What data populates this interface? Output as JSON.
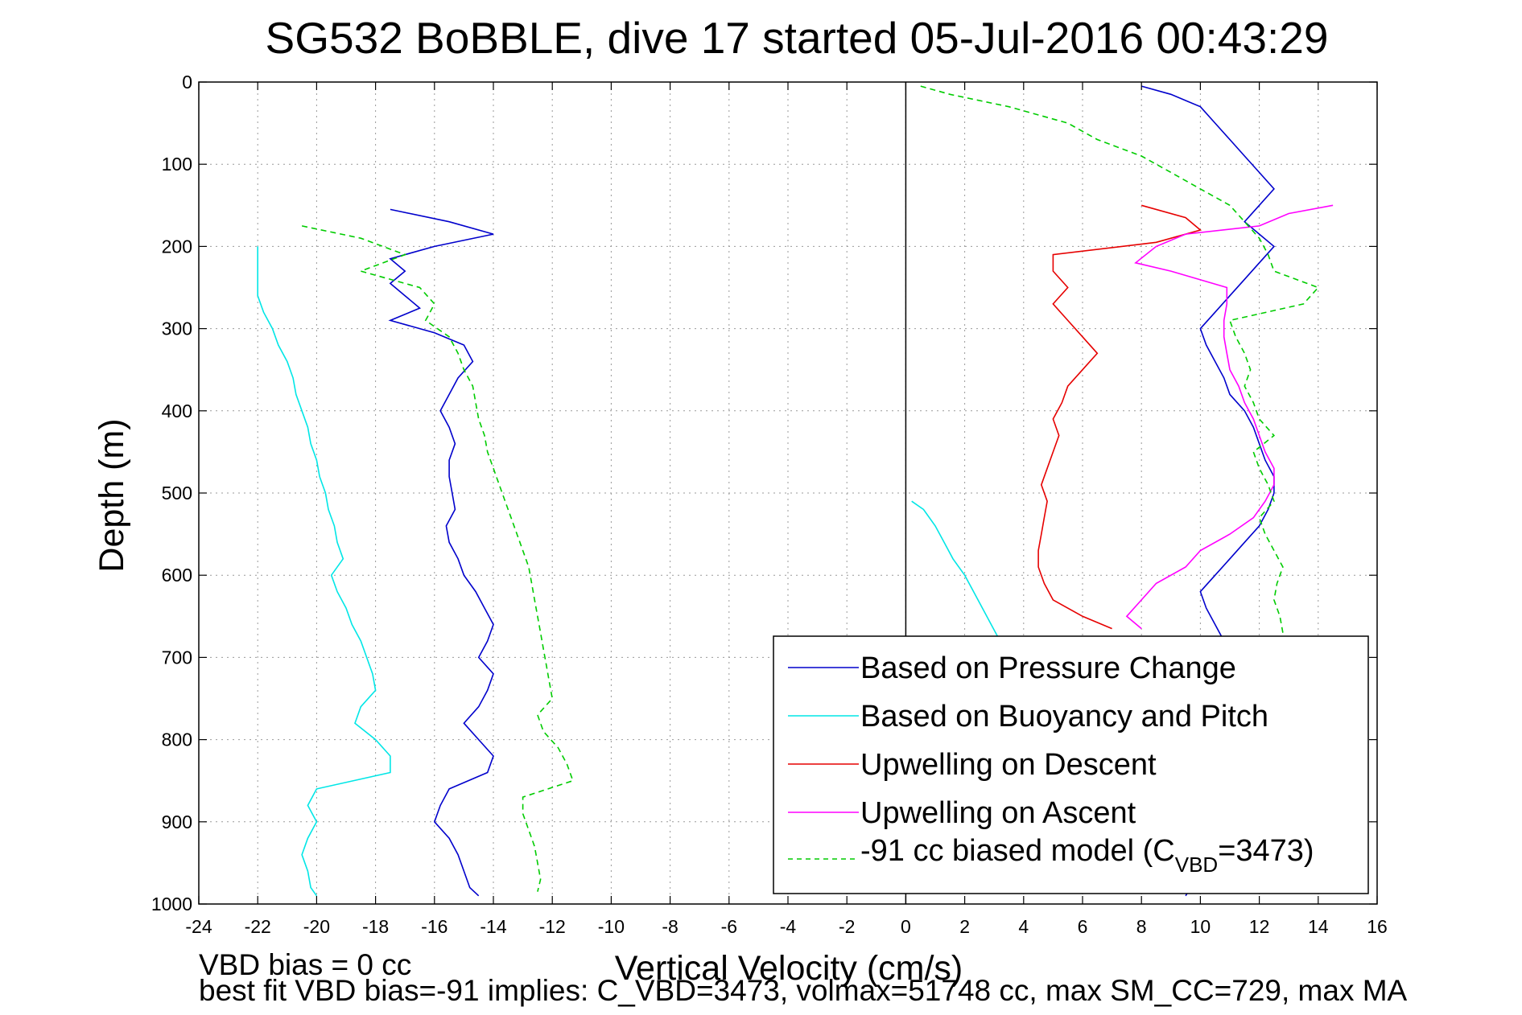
{
  "chart_data": {
    "type": "line",
    "title": "SG532 BoBBLE, dive 17 started 05-Jul-2016 00:43:29",
    "xlabel": "Vertical Velocity (cm/s)",
    "ylabel": "Depth (m)",
    "xlim": [
      -24,
      16
    ],
    "ylim": [
      1000,
      0
    ],
    "y_inverted": true,
    "grid": true,
    "legend_position": "bottom-right",
    "x_ticks": [
      "-24",
      "-22",
      "-20",
      "-18",
      "-16",
      "-14",
      "-12",
      "-10",
      "-8",
      "-6",
      "-4",
      "-2",
      "0",
      "2",
      "4",
      "6",
      "8",
      "10",
      "12",
      "14",
      "16"
    ],
    "y_ticks": [
      "0",
      "100",
      "200",
      "300",
      "400",
      "500",
      "600",
      "700",
      "800",
      "900",
      "1000"
    ],
    "legend": {
      "pressure": "Based on Pressure Change",
      "buoyancy": "Based on Buoyancy and Pitch",
      "descent": "Upwelling on Descent",
      "ascent": "Upwelling on Ascent",
      "model_main": "-91 cc biased model (C",
      "model_sub": "VBD",
      "model_tail": "=3473)"
    },
    "colors": {
      "pressure": "#0000cc",
      "buoyancy": "#00e6e6",
      "descent": "#e60000",
      "ascent": "#ff00ff",
      "model": "#00cc00"
    },
    "series": [
      {
        "key": "pressure_descent",
        "color": "#0000cc",
        "depth": [
          155,
          170,
          185,
          200,
          215,
          230,
          245,
          260,
          275,
          290,
          305,
          320,
          340,
          360,
          380,
          400,
          420,
          440,
          460,
          480,
          500,
          520,
          540,
          560,
          580,
          600,
          620,
          640,
          660,
          680,
          700,
          720,
          740,
          760,
          780,
          800,
          820,
          840,
          860,
          880,
          900,
          920,
          940,
          960,
          980,
          990
        ],
        "velocity": [
          -17.5,
          -15.5,
          -14.0,
          -16.0,
          -17.5,
          -17.0,
          -17.5,
          -17.0,
          -16.5,
          -17.5,
          -16.0,
          -15.0,
          -14.7,
          -15.2,
          -15.5,
          -15.8,
          -15.5,
          -15.3,
          -15.5,
          -15.5,
          -15.4,
          -15.3,
          -15.6,
          -15.5,
          -15.2,
          -15.0,
          -14.6,
          -14.3,
          -14.0,
          -14.2,
          -14.5,
          -14.0,
          -14.2,
          -14.5,
          -15.0,
          -14.5,
          -14.0,
          -14.2,
          -15.5,
          -15.8,
          -16.0,
          -15.5,
          -15.2,
          -15.0,
          -14.8,
          -14.5
        ]
      },
      {
        "key": "buoyancy_descent",
        "color": "#00e6e6",
        "depth": [
          200,
          220,
          240,
          260,
          280,
          300,
          320,
          340,
          360,
          380,
          400,
          420,
          440,
          460,
          480,
          500,
          520,
          540,
          560,
          580,
          600,
          620,
          640,
          660,
          680,
          700,
          720,
          740,
          760,
          780,
          800,
          820,
          840,
          860,
          880,
          900,
          920,
          940,
          960,
          980,
          990
        ],
        "velocity": [
          -22.0,
          -22.0,
          -22.0,
          -22.0,
          -21.8,
          -21.5,
          -21.3,
          -21.0,
          -20.8,
          -20.7,
          -20.5,
          -20.3,
          -20.2,
          -20.0,
          -19.9,
          -19.7,
          -19.6,
          -19.4,
          -19.3,
          -19.1,
          -19.5,
          -19.3,
          -19.0,
          -18.8,
          -18.5,
          -18.3,
          -18.1,
          -18.0,
          -18.5,
          -18.7,
          -18.0,
          -17.5,
          -17.5,
          -20.0,
          -20.3,
          -20.0,
          -20.3,
          -20.5,
          -20.3,
          -20.2,
          -20.0
        ]
      },
      {
        "key": "model_descent",
        "color": "#00cc00",
        "depth": [
          175,
          190,
          210,
          230,
          250,
          270,
          290,
          310,
          330,
          350,
          370,
          390,
          410,
          430,
          450,
          470,
          490,
          510,
          530,
          550,
          570,
          590,
          610,
          630,
          650,
          670,
          690,
          710,
          730,
          750,
          770,
          790,
          810,
          830,
          850,
          870,
          890,
          910,
          930,
          950,
          970,
          985
        ],
        "velocity": [
          -20.5,
          -18.5,
          -17.0,
          -18.5,
          -16.5,
          -16.0,
          -16.3,
          -15.5,
          -15.2,
          -15.0,
          -14.7,
          -14.6,
          -14.5,
          -14.3,
          -14.2,
          -14.0,
          -13.8,
          -13.6,
          -13.4,
          -13.2,
          -13.0,
          -12.8,
          -12.7,
          -12.6,
          -12.5,
          -12.4,
          -12.3,
          -12.2,
          -12.1,
          -12.0,
          -12.5,
          -12.3,
          -11.8,
          -11.5,
          -11.3,
          -13.0,
          -13.0,
          -12.8,
          -12.6,
          -12.5,
          -12.4,
          -12.5
        ]
      },
      {
        "key": "pressure_ascent",
        "color": "#0000cc",
        "depth": [
          990,
          960,
          930,
          900,
          880,
          860,
          840,
          820,
          800,
          780,
          760,
          740,
          720,
          700,
          680,
          660,
          640,
          620,
          600,
          580,
          560,
          540,
          520,
          500,
          480,
          460,
          440,
          420,
          400,
          380,
          360,
          340,
          320,
          300,
          280,
          260,
          240,
          220,
          200,
          185,
          170,
          150,
          130,
          110,
          90,
          70,
          50,
          30,
          15,
          5
        ],
        "velocity": [
          9.5,
          10.0,
          10.5,
          11.0,
          11.5,
          12.0,
          12.5,
          12.8,
          13.0,
          12.5,
          12.0,
          11.5,
          11.3,
          11.0,
          10.8,
          10.5,
          10.2,
          10.0,
          10.5,
          11.0,
          11.5,
          12.0,
          12.3,
          12.5,
          12.5,
          12.2,
          12.0,
          11.8,
          11.5,
          11.0,
          10.8,
          10.5,
          10.2,
          10.0,
          10.5,
          11.0,
          11.5,
          12.0,
          12.5,
          12.0,
          11.5,
          12.0,
          12.5,
          12.0,
          11.5,
          11.0,
          10.5,
          10.0,
          9.0,
          8.0
        ]
      },
      {
        "key": "descent_upwelling",
        "color": "#e60000",
        "depth": [
          150,
          165,
          180,
          195,
          210,
          230,
          250,
          270,
          290,
          310,
          330,
          350,
          370,
          390,
          410,
          430,
          450,
          470,
          490,
          510,
          530,
          550,
          570,
          590,
          610,
          630,
          650,
          665
        ],
        "velocity": [
          8.0,
          9.5,
          10.0,
          8.5,
          5.0,
          5.0,
          5.5,
          5.0,
          5.5,
          6.0,
          6.5,
          6.0,
          5.5,
          5.3,
          5.0,
          5.2,
          5.0,
          4.8,
          4.6,
          4.8,
          4.7,
          4.6,
          4.5,
          4.5,
          4.7,
          5.0,
          6.0,
          7.0
        ]
      },
      {
        "key": "ascent_upwelling",
        "color": "#ff00ff",
        "depth": [
          665,
          650,
          630,
          610,
          590,
          570,
          550,
          530,
          510,
          490,
          470,
          450,
          430,
          410,
          390,
          370,
          350,
          330,
          310,
          290,
          270,
          250,
          230,
          220,
          200,
          185,
          175,
          160,
          150
        ],
        "velocity": [
          8.0,
          7.5,
          8.0,
          8.5,
          9.5,
          10.0,
          11.0,
          11.8,
          12.2,
          12.5,
          12.5,
          12.2,
          12.0,
          11.8,
          11.5,
          11.3,
          11.0,
          10.9,
          10.8,
          10.8,
          10.9,
          10.9,
          9.0,
          7.8,
          8.5,
          9.5,
          12.0,
          13.0,
          14.5
        ]
      },
      {
        "key": "buoyancy_ascent",
        "color": "#00e6e6",
        "depth": [
          510,
          520,
          540,
          560,
          580,
          600,
          620,
          640,
          660,
          680
        ],
        "velocity": [
          0.2,
          0.6,
          1.0,
          1.3,
          1.6,
          2.0,
          2.3,
          2.6,
          2.9,
          3.2
        ]
      },
      {
        "key": "model_ascent",
        "color": "#00cc00",
        "depth": [
          670,
          650,
          630,
          610,
          590,
          570,
          550,
          530,
          510,
          490,
          470,
          450,
          430,
          410,
          390,
          370,
          350,
          330,
          310,
          290,
          270,
          250,
          230,
          210,
          190,
          170,
          150,
          130,
          110,
          90,
          70,
          50,
          30,
          15,
          5
        ],
        "velocity": [
          12.8,
          12.7,
          12.5,
          12.6,
          12.8,
          12.5,
          12.2,
          12.0,
          12.5,
          12.3,
          12.0,
          11.8,
          12.5,
          12.0,
          11.8,
          11.5,
          11.7,
          11.5,
          11.2,
          11.0,
          13.5,
          14.0,
          12.5,
          12.3,
          12.0,
          11.5,
          11.0,
          10.0,
          9.0,
          8.0,
          6.5,
          5.5,
          3.5,
          1.5,
          0.5
        ]
      }
    ]
  },
  "footer": {
    "line1": "VBD bias = 0 cc",
    "line2": "best fit VBD bias=-91 implies: C_VBD=3473, volmax=51748 cc, max SM_CC=729, max MA"
  }
}
